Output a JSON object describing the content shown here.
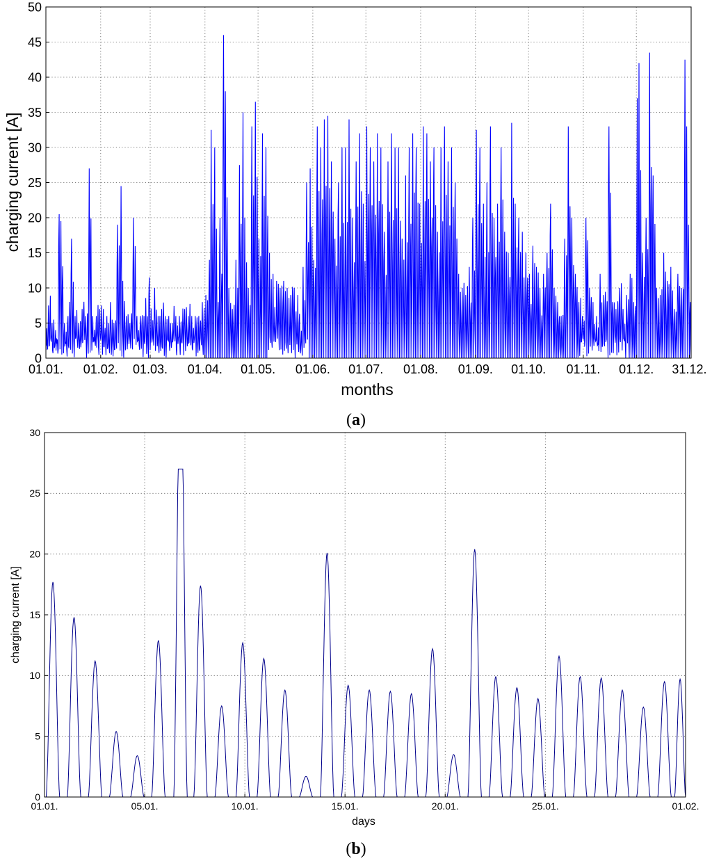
{
  "panels": [
    {
      "label_bold": "a"
    },
    {
      "label_bold": "b"
    }
  ],
  "chart_data": [
    {
      "type": "line",
      "title": "",
      "xlabel": "months",
      "ylabel": "charging current [A]",
      "x_tick_labels": [
        "01.01.",
        "01.02.",
        "01.03.",
        "01.04.",
        "01.05.",
        "01.06.",
        "01.07.",
        "01.08.",
        "01.09.",
        "01.10.",
        "01.11.",
        "01.12.",
        "31.12."
      ],
      "x_tick_days": [
        0,
        31,
        59,
        90,
        120,
        151,
        181,
        212,
        243,
        273,
        304,
        334,
        364
      ],
      "xlim_days": [
        0,
        365
      ],
      "ylim": [
        0,
        50
      ],
      "y_ticks": [
        0,
        5,
        10,
        15,
        20,
        25,
        30,
        35,
        40,
        45,
        50
      ],
      "grid": true,
      "line_color": "#0000ff",
      "series": [
        {
          "peaks_day_value": [
            [
              1,
              7.5
            ],
            [
              3,
              5
            ],
            [
              5,
              4
            ],
            [
              7,
              20.5
            ],
            [
              8,
              19.5
            ],
            [
              10,
              5
            ],
            [
              12,
              6
            ],
            [
              14,
              17
            ],
            [
              16,
              6
            ],
            [
              18,
              5
            ],
            [
              20,
              7
            ],
            [
              22,
              6
            ],
            [
              24,
              27
            ],
            [
              26,
              6
            ],
            [
              28,
              6
            ],
            [
              30,
              7
            ],
            [
              32,
              7
            ],
            [
              34,
              6
            ],
            [
              36,
              8
            ],
            [
              38,
              5
            ],
            [
              40,
              19
            ],
            [
              42,
              24.5
            ],
            [
              43,
              11
            ],
            [
              45,
              6
            ],
            [
              47,
              5
            ],
            [
              49,
              20
            ],
            [
              51,
              6
            ],
            [
              53,
              6
            ],
            [
              55,
              6
            ],
            [
              58,
              11.5
            ],
            [
              61,
              10
            ],
            [
              63,
              6
            ],
            [
              65,
              7
            ],
            [
              67,
              6
            ],
            [
              69,
              6
            ],
            [
              71,
              5
            ],
            [
              73,
              6
            ],
            [
              75,
              6
            ],
            [
              78,
              7
            ],
            [
              80,
              6
            ],
            [
              82,
              6
            ],
            [
              84,
              6
            ],
            [
              86,
              6
            ],
            [
              88,
              8
            ],
            [
              90,
              9
            ],
            [
              92,
              14
            ],
            [
              93,
              32.5
            ],
            [
              95,
              30
            ],
            [
              97,
              8
            ],
            [
              98,
              20
            ],
            [
              100,
              46
            ],
            [
              101,
              38
            ],
            [
              103,
              10
            ],
            [
              105,
              7
            ],
            [
              107,
              14
            ],
            [
              109,
              27.5
            ],
            [
              111,
              35
            ],
            [
              112,
              20
            ],
            [
              114,
              10
            ],
            [
              116,
              33
            ],
            [
              118,
              36.5
            ],
            [
              120,
              17
            ],
            [
              122,
              32
            ],
            [
              124,
              30
            ],
            [
              126,
              15
            ],
            [
              128,
              12
            ],
            [
              130,
              11
            ],
            [
              132,
              10
            ],
            [
              134,
              11
            ],
            [
              136,
              10
            ],
            [
              138,
              9
            ],
            [
              140,
              10
            ],
            [
              142,
              9
            ],
            [
              145,
              13
            ],
            [
              147,
              25
            ],
            [
              149,
              27
            ],
            [
              151,
              14
            ],
            [
              153,
              33
            ],
            [
              155,
              30
            ],
            [
              157,
              34
            ],
            [
              159,
              34.5
            ],
            [
              161,
              28
            ],
            [
              163,
              17
            ],
            [
              165,
              25
            ],
            [
              167,
              30
            ],
            [
              169,
              30
            ],
            [
              171,
              34
            ],
            [
              173,
              20
            ],
            [
              175,
              28
            ],
            [
              177,
              32
            ],
            [
              179,
              22
            ],
            [
              181,
              33
            ],
            [
              183,
              30
            ],
            [
              185,
              28
            ],
            [
              187,
              32
            ],
            [
              189,
              30
            ],
            [
              191,
              18
            ],
            [
              193,
              28
            ],
            [
              195,
              32
            ],
            [
              197,
              30
            ],
            [
              199,
              30
            ],
            [
              201,
              17
            ],
            [
              203,
              26
            ],
            [
              205,
              30
            ],
            [
              207,
              32
            ],
            [
              209,
              30
            ],
            [
              211,
              22
            ],
            [
              213,
              33
            ],
            [
              215,
              32
            ],
            [
              217,
              28
            ],
            [
              219,
              30
            ],
            [
              221,
              18
            ],
            [
              223,
              30
            ],
            [
              225,
              33
            ],
            [
              227,
              28
            ],
            [
              229,
              30
            ],
            [
              231,
              25
            ],
            [
              233,
              12
            ],
            [
              235,
              10
            ],
            [
              237,
              9
            ],
            [
              239,
              13
            ],
            [
              241,
              20
            ],
            [
              243,
              32.5
            ],
            [
              245,
              30
            ],
            [
              247,
              22
            ],
            [
              249,
              25
            ],
            [
              251,
              33
            ],
            [
              253,
              20
            ],
            [
              255,
              22
            ],
            [
              257,
              30
            ],
            [
              259,
              18
            ],
            [
              261,
              15
            ],
            [
              263,
              33.5
            ],
            [
              265,
              22
            ],
            [
              267,
              20
            ],
            [
              269,
              18
            ],
            [
              271,
              15
            ],
            [
              273,
              12
            ],
            [
              275,
              16
            ],
            [
              277,
              13
            ],
            [
              279,
              10
            ],
            [
              281,
              12
            ],
            [
              283,
              15
            ],
            [
              285,
              22
            ],
            [
              287,
              10
            ],
            [
              289,
              8
            ],
            [
              291,
              6
            ],
            [
              293,
              17
            ],
            [
              295,
              33
            ],
            [
              297,
              20
            ],
            [
              299,
              12
            ],
            [
              301,
              8
            ],
            [
              303,
              6
            ],
            [
              305,
              20
            ],
            [
              307,
              10
            ],
            [
              309,
              8
            ],
            [
              311,
              6
            ],
            [
              313,
              12
            ],
            [
              315,
              9
            ],
            [
              318,
              33
            ],
            [
              320,
              8
            ],
            [
              322,
              7
            ],
            [
              324,
              10
            ],
            [
              326,
              7
            ],
            [
              328,
              9
            ],
            [
              330,
              12
            ],
            [
              332,
              8
            ],
            [
              334,
              37
            ],
            [
              335,
              42
            ],
            [
              337,
              15
            ],
            [
              339,
              20
            ],
            [
              341,
              43.5
            ],
            [
              343,
              26
            ],
            [
              345,
              10
            ],
            [
              347,
              9
            ],
            [
              349,
              15
            ],
            [
              351,
              11
            ],
            [
              353,
              13
            ],
            [
              355,
              7
            ],
            [
              357,
              12
            ],
            [
              359,
              10
            ],
            [
              361,
              42.5
            ],
            [
              362,
              33
            ],
            [
              363,
              19
            ],
            [
              364,
              8
            ]
          ]
        }
      ]
    },
    {
      "type": "line",
      "title": "",
      "xlabel": "days",
      "ylabel": "charging current [A]",
      "x_tick_labels": [
        "01.01.",
        "05.01.",
        "10.01.",
        "15.01.",
        "20.01.",
        "25.01.",
        "01.02."
      ],
      "x_tick_days": [
        0,
        4.75,
        9.5,
        14.25,
        19,
        23.75,
        30.4
      ],
      "xlim_days": [
        0,
        30.4
      ],
      "ylim": [
        0,
        30
      ],
      "y_ticks": [
        0,
        5,
        10,
        15,
        20,
        25,
        30
      ],
      "grid": true,
      "line_color": "#00008b",
      "series": [
        {
          "daily_peaks": [
            {
              "center": 0.4,
              "peak": 17.7
            },
            {
              "center": 1.4,
              "peak": 14.8
            },
            {
              "center": 2.4,
              "peak": 11.2
            },
            {
              "center": 3.4,
              "peak": 5.4
            },
            {
              "center": 4.4,
              "peak": 3.4
            },
            {
              "center": 5.4,
              "peak": 12.9
            },
            {
              "center": 6.45,
              "peak": 27.0
            },
            {
              "center": 7.4,
              "peak": 17.4
            },
            {
              "center": 8.4,
              "peak": 7.5
            },
            {
              "center": 9.4,
              "peak": 12.7
            },
            {
              "center": 10.4,
              "peak": 11.4
            },
            {
              "center": 11.4,
              "peak": 8.8
            },
            {
              "center": 12.4,
              "peak": 1.7
            },
            {
              "center": 13.4,
              "peak": 20.1
            },
            {
              "center": 14.4,
              "peak": 9.2
            },
            {
              "center": 15.4,
              "peak": 8.8
            },
            {
              "center": 16.4,
              "peak": 8.7
            },
            {
              "center": 17.4,
              "peak": 8.5
            },
            {
              "center": 18.4,
              "peak": 12.2
            },
            {
              "center": 19.4,
              "peak": 3.5
            },
            {
              "center": 20.4,
              "peak": 20.4
            },
            {
              "center": 21.4,
              "peak": 9.9
            },
            {
              "center": 22.4,
              "peak": 9.0
            },
            {
              "center": 23.4,
              "peak": 8.1
            },
            {
              "center": 24.4,
              "peak": 11.6
            },
            {
              "center": 25.4,
              "peak": 9.9
            },
            {
              "center": 26.4,
              "peak": 9.8
            },
            {
              "center": 27.4,
              "peak": 8.8
            },
            {
              "center": 28.4,
              "peak": 7.4
            },
            {
              "center": 29.4,
              "peak": 9.5
            },
            {
              "center": 30.2,
              "peak": 9.7
            }
          ]
        }
      ]
    }
  ]
}
